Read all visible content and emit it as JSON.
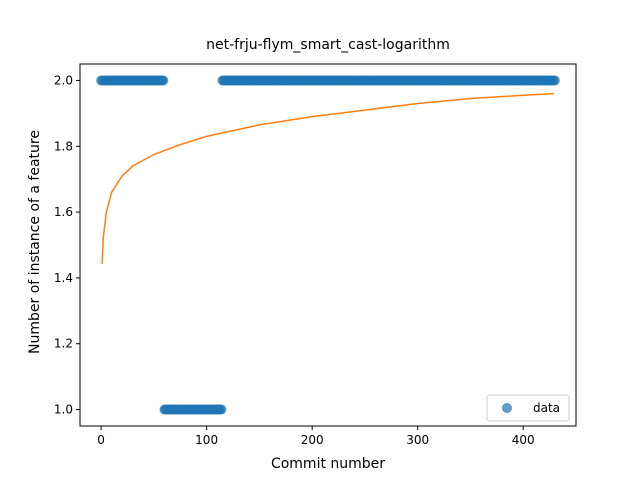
{
  "chart_data": {
    "type": "scatter",
    "title": "net-frju-flym_smart_cast-logarithm",
    "xlabel": "Commit number",
    "ylabel": "Number of instance of a feature",
    "xlim": [
      -20,
      450
    ],
    "ylim": [
      0.95,
      2.05
    ],
    "xticks": [
      0,
      100,
      200,
      300,
      400
    ],
    "yticks": [
      1.0,
      1.2,
      1.4,
      1.6,
      1.8,
      2.0
    ],
    "xtick_labels": [
      "0",
      "100",
      "200",
      "300",
      "400"
    ],
    "ytick_labels": [
      "1.0",
      "1.2",
      "1.4",
      "1.6",
      "1.8",
      "2.0"
    ],
    "legend": {
      "position": "lower-right",
      "entries": [
        "data"
      ]
    },
    "series": [
      {
        "name": "data",
        "kind": "scatter",
        "color": "#1f77b4",
        "segments": [
          {
            "x_start": 0,
            "x_end": 59,
            "y": 2.0
          },
          {
            "x_start": 60,
            "x_end": 114,
            "y": 1.0
          },
          {
            "x_start": 115,
            "x_end": 430,
            "y": 2.0
          }
        ]
      },
      {
        "kind": "line",
        "color": "#ff7f0e",
        "points": [
          [
            1,
            1.443
          ],
          [
            2,
            1.52
          ],
          [
            5,
            1.6
          ],
          [
            10,
            1.66
          ],
          [
            20,
            1.71
          ],
          [
            30,
            1.74
          ],
          [
            50,
            1.775
          ],
          [
            75,
            1.805
          ],
          [
            100,
            1.83
          ],
          [
            150,
            1.865
          ],
          [
            200,
            1.89
          ],
          [
            250,
            1.91
          ],
          [
            300,
            1.93
          ],
          [
            350,
            1.945
          ],
          [
            400,
            1.955
          ],
          [
            429,
            1.96
          ]
        ]
      }
    ]
  }
}
